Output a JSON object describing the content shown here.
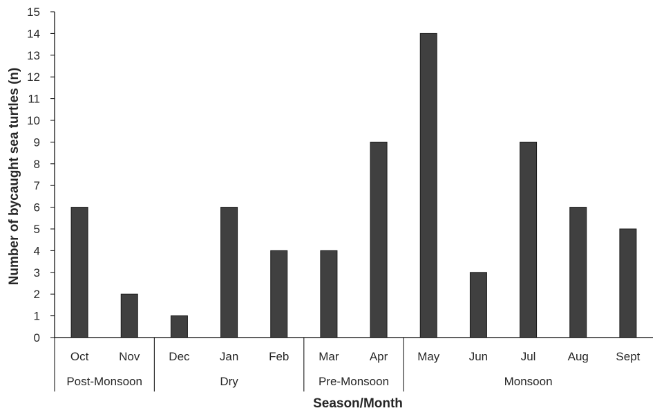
{
  "chart_data": {
    "type": "bar",
    "categories": [
      "Oct",
      "Nov",
      "Dec",
      "Jan",
      "Feb",
      "Mar",
      "Apr",
      "May",
      "Jun",
      "Jul",
      "Aug",
      "Sept"
    ],
    "values": [
      6,
      2,
      1,
      6,
      4,
      4,
      9,
      14,
      3,
      9,
      6,
      5
    ],
    "groups": [
      {
        "label": "Post-Monsoon",
        "categories": [
          "Oct",
          "Nov"
        ]
      },
      {
        "label": "Dry",
        "categories": [
          "Dec",
          "Jan",
          "Feb"
        ]
      },
      {
        "label": "Pre-Monsoon",
        "categories": [
          "Mar",
          "Apr"
        ]
      },
      {
        "label": "Monsoon",
        "categories": [
          "May",
          "Jun",
          "Jul",
          "Aug",
          "Sept"
        ]
      }
    ],
    "xlabel": "Season/Month",
    "ylabel": "Number of bycaught sea turtles (n)",
    "ylim": [
      0,
      15
    ],
    "yticks": [
      0,
      1,
      2,
      3,
      4,
      5,
      6,
      7,
      8,
      9,
      10,
      11,
      12,
      13,
      14,
      15
    ],
    "grid": false,
    "legend": "none",
    "colors": {
      "bar_fill": "#404040",
      "bar_stroke": "#1a1a1a",
      "axis": "#000000",
      "text": "#262626"
    }
  }
}
